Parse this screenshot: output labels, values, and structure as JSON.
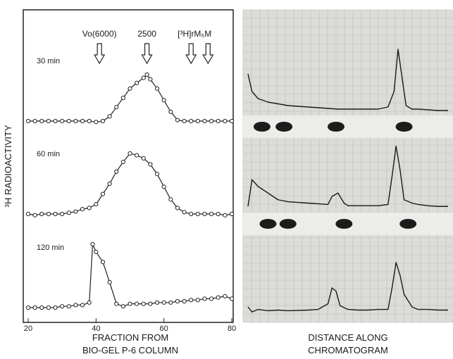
{
  "chart_data": [
    {
      "type": "line",
      "ylabel": "³H RADIOACTIVITY",
      "xlabel_line1": "FRACTION FROM",
      "xlabel_line2": "BIO-GEL P-6 COLUMN",
      "xlim": [
        20,
        80
      ],
      "xticks": [
        "20",
        "40",
        "60",
        "80"
      ],
      "markers": [
        {
          "label": "Vo(6000)",
          "x": 41
        },
        {
          "label": "2500",
          "x": 55
        },
        {
          "label": "[³H]rM₅",
          "x": 68
        },
        {
          "label": "M",
          "x": 73
        }
      ],
      "series": [
        {
          "name": "30 min",
          "x": [
            20,
            22,
            24,
            26,
            28,
            30,
            32,
            34,
            36,
            38,
            40,
            42,
            44,
            46,
            48,
            50,
            52,
            54,
            55,
            56,
            58,
            60,
            62,
            64,
            66,
            68,
            70,
            72,
            74,
            76,
            78,
            80
          ],
          "y": [
            0.0,
            0.0,
            0.0,
            0.0,
            0.0,
            0.0,
            0.0,
            0.0,
            0.0,
            0.0,
            -0.02,
            0.0,
            0.1,
            0.3,
            0.5,
            0.7,
            0.82,
            0.93,
            1.0,
            0.9,
            0.7,
            0.45,
            0.2,
            0.02,
            0.0,
            0.0,
            0.0,
            0.0,
            0.0,
            0.0,
            0.0,
            0.0
          ]
        },
        {
          "name": "60 min",
          "x": [
            20,
            22,
            24,
            26,
            28,
            30,
            32,
            34,
            36,
            38,
            40,
            42,
            44,
            46,
            48,
            50,
            52,
            54,
            56,
            58,
            60,
            62,
            64,
            66,
            68,
            70,
            72,
            74,
            76,
            78,
            80
          ],
          "y": [
            0.0,
            -0.02,
            0.0,
            0.0,
            0.0,
            0.0,
            0.02,
            0.04,
            0.08,
            0.1,
            0.16,
            0.33,
            0.5,
            0.7,
            0.86,
            1.0,
            0.97,
            0.92,
            0.82,
            0.66,
            0.45,
            0.24,
            0.1,
            0.03,
            0.0,
            0.0,
            0.0,
            0.0,
            0.0,
            -0.02,
            0.0
          ]
        },
        {
          "name": "120 min",
          "x": [
            20,
            22,
            24,
            26,
            28,
            30,
            32,
            34,
            36,
            38,
            39,
            40,
            42,
            44,
            46,
            48,
            50,
            52,
            54,
            56,
            58,
            60,
            62,
            64,
            66,
            68,
            70,
            72,
            74,
            76,
            78,
            80
          ],
          "y": [
            0.0,
            0.0,
            0.0,
            0.0,
            0.0,
            0.02,
            0.02,
            0.04,
            0.04,
            0.08,
            1.0,
            0.88,
            0.72,
            0.4,
            0.06,
            0.02,
            0.06,
            0.06,
            0.06,
            0.06,
            0.08,
            0.08,
            0.08,
            0.1,
            0.1,
            0.12,
            0.12,
            0.14,
            0.14,
            0.16,
            0.18,
            0.14
          ]
        }
      ]
    },
    {
      "type": "line",
      "xlabel_line1": "DISTANCE ALONG",
      "xlabel_line2": "CHROMATOGRAM",
      "xlim": [
        0,
        1
      ],
      "series": [
        {
          "x": [
            0,
            0.02,
            0.05,
            0.1,
            0.2,
            0.3,
            0.4,
            0.45,
            0.5,
            0.55,
            0.6,
            0.65,
            0.7,
            0.73,
            0.75,
            0.77,
            0.79,
            0.82,
            0.85,
            0.9,
            0.95,
            1.0
          ],
          "y": [
            0.55,
            0.3,
            0.2,
            0.15,
            0.1,
            0.08,
            0.06,
            0.05,
            0.05,
            0.05,
            0.05,
            0.05,
            0.08,
            0.3,
            0.9,
            0.5,
            0.1,
            0.05,
            0.05,
            0.04,
            0.03,
            0.03
          ]
        },
        {
          "x": [
            0,
            0.02,
            0.05,
            0.1,
            0.15,
            0.2,
            0.3,
            0.4,
            0.42,
            0.45,
            0.48,
            0.5,
            0.55,
            0.6,
            0.65,
            0.7,
            0.72,
            0.74,
            0.76,
            0.78,
            0.82,
            0.85,
            0.9,
            0.95,
            1.0
          ],
          "y": [
            0.05,
            0.45,
            0.35,
            0.25,
            0.15,
            0.12,
            0.1,
            0.08,
            0.2,
            0.25,
            0.1,
            0.06,
            0.06,
            0.06,
            0.06,
            0.08,
            0.5,
            0.95,
            0.6,
            0.15,
            0.1,
            0.08,
            0.06,
            0.05,
            0.05
          ]
        },
        {
          "x": [
            0,
            0.02,
            0.05,
            0.1,
            0.15,
            0.2,
            0.3,
            0.35,
            0.4,
            0.42,
            0.44,
            0.46,
            0.5,
            0.55,
            0.6,
            0.65,
            0.7,
            0.72,
            0.74,
            0.76,
            0.78,
            0.82,
            0.85,
            0.9,
            0.95,
            1.0
          ],
          "y": [
            0.1,
            0.02,
            0.06,
            0.04,
            0.05,
            0.04,
            0.05,
            0.06,
            0.15,
            0.4,
            0.35,
            0.12,
            0.06,
            0.05,
            0.05,
            0.06,
            0.06,
            0.4,
            0.8,
            0.6,
            0.3,
            0.1,
            0.06,
            0.06,
            0.05,
            0.05
          ]
        }
      ],
      "spots": [
        {
          "row": 1,
          "x": [
            0.07,
            0.18,
            0.44,
            0.78
          ]
        },
        {
          "row": 2,
          "x": [
            0.1,
            0.2,
            0.48,
            0.8
          ]
        }
      ]
    }
  ]
}
